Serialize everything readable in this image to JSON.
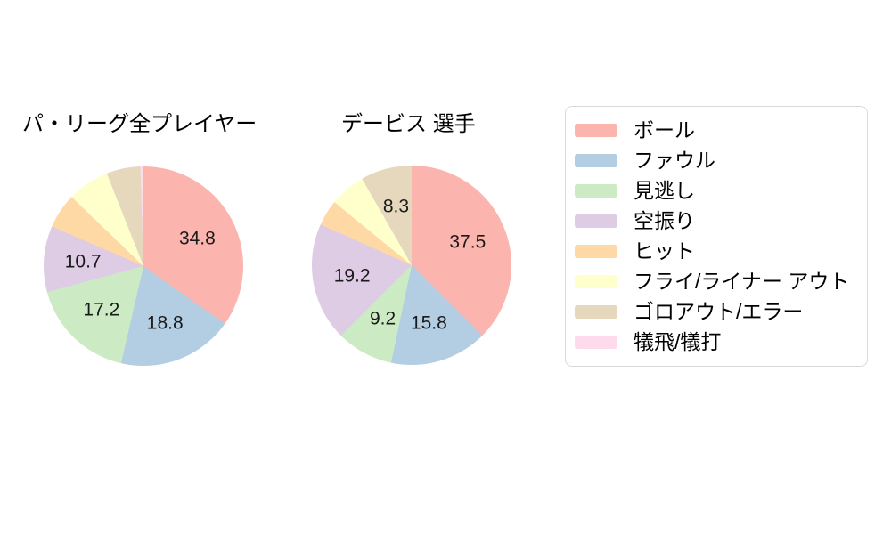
{
  "chart_data": [
    {
      "type": "pie",
      "title": "パ・リーグ全プレイヤー",
      "categories": [
        "ボール",
        "ファウル",
        "見逃し",
        "空振り",
        "ヒット",
        "フライ/ライナー アウト",
        "ゴロアウト/エラー",
        "犠飛/犠打"
      ],
      "values": [
        34.8,
        18.8,
        17.2,
        10.7,
        5.7,
        6.8,
        5.5,
        0.5
      ],
      "data_labels": [
        "34.8",
        "18.8",
        "17.2",
        "10.7",
        "",
        "",
        "",
        ""
      ],
      "colors": [
        "#fbb4ae",
        "#b3cde3",
        "#ccebc5",
        "#decbe4",
        "#fed9a6",
        "#ffffcc",
        "#e5d8bd",
        "#fddaec"
      ],
      "start_angle": "12-oclock",
      "direction": "clockwise",
      "units": "percent"
    },
    {
      "type": "pie",
      "title": "デービス 選手",
      "categories": [
        "ボール",
        "ファウル",
        "見逃し",
        "空振り",
        "ヒット",
        "フライ/ライナー アウト",
        "ゴロアウト/エラー",
        "犠飛/犠打"
      ],
      "values": [
        37.5,
        15.8,
        9.2,
        19.2,
        4.2,
        5.8,
        8.3,
        0
      ],
      "data_labels": [
        "37.5",
        "15.8",
        "9.2",
        "19.2",
        "",
        "",
        "8.3",
        ""
      ],
      "colors": [
        "#fbb4ae",
        "#b3cde3",
        "#ccebc5",
        "#decbe4",
        "#fed9a6",
        "#ffffcc",
        "#e5d8bd",
        "#fddaec"
      ],
      "start_angle": "12-oclock",
      "direction": "clockwise",
      "units": "percent"
    }
  ],
  "legend": {
    "position": "right",
    "border_color": "#d9d9d9",
    "items": [
      {
        "label": "ボール",
        "color": "#fbb4ae"
      },
      {
        "label": "ファウル",
        "color": "#b3cde3"
      },
      {
        "label": "見逃し",
        "color": "#ccebc5"
      },
      {
        "label": "空振り",
        "color": "#decbe4"
      },
      {
        "label": "ヒット",
        "color": "#fed9a6"
      },
      {
        "label": "フライ/ライナー アウト",
        "color": "#ffffcc"
      },
      {
        "label": "ゴロアウト/エラー",
        "color": "#e5d8bd"
      },
      {
        "label": "犠飛/犠打",
        "color": "#fddaec"
      }
    ]
  }
}
